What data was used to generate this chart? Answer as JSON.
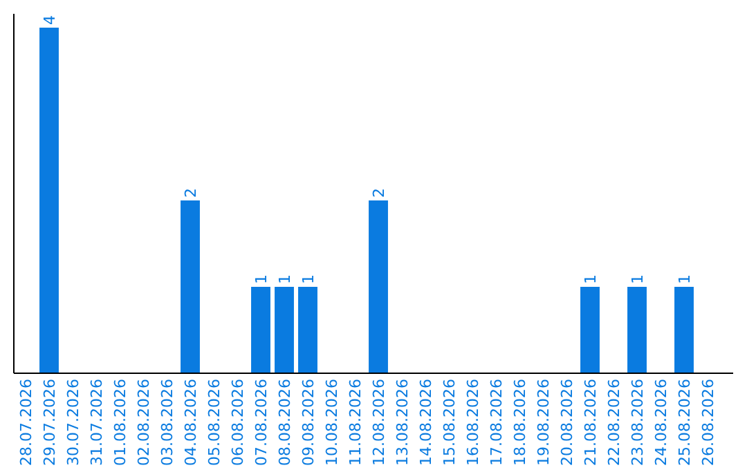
{
  "chart_data": {
    "type": "bar",
    "categories": [
      "28.07.2026",
      "29.07.2026",
      "30.07.2026",
      "31.07.2026",
      "01.08.2026",
      "02.08.2026",
      "03.08.2026",
      "04.08.2026",
      "05.08.2026",
      "06.08.2026",
      "07.08.2026",
      "08.08.2026",
      "09.08.2026",
      "10.08.2026",
      "11.08.2026",
      "12.08.2026",
      "13.08.2026",
      "14.08.2026",
      "15.08.2026",
      "16.08.2026",
      "17.08.2026",
      "18.08.2026",
      "19.08.2026",
      "20.08.2026",
      "21.08.2026",
      "22.08.2026",
      "23.08.2026",
      "24.08.2026",
      "25.08.2026",
      "26.08.2026"
    ],
    "values": [
      0,
      4,
      0,
      0,
      0,
      0,
      0,
      2,
      0,
      0,
      1,
      1,
      1,
      0,
      0,
      2,
      0,
      0,
      0,
      0,
      0,
      0,
      0,
      0,
      1,
      0,
      1,
      0,
      1,
      0
    ],
    "value_labels": [
      null,
      "4",
      null,
      null,
      null,
      null,
      null,
      "2",
      null,
      null,
      "1",
      "1",
      "1",
      null,
      null,
      "2",
      null,
      null,
      null,
      null,
      null,
      null,
      null,
      null,
      "1",
      null,
      "1",
      null,
      "1",
      null
    ],
    "color": "#0a7be0",
    "tick_labels": "x",
    "grid": false
  }
}
